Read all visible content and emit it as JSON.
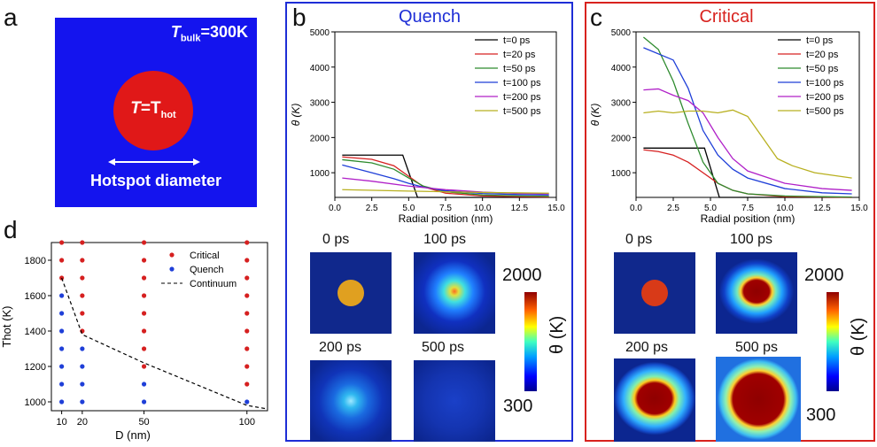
{
  "panel_a": {
    "letter": "a",
    "bulk_T": "T",
    "bulk_sub": "bulk",
    "bulk_val": "=300K",
    "hot_T": "T",
    "hot_eq": "=T",
    "hot_sub": "hot",
    "diameter_label": "Hotspot diameter",
    "colors": {
      "background": "#1414ee",
      "spot": "#e01818"
    }
  },
  "panel_b": {
    "letter": "b",
    "title": "Quench",
    "title_color": "#1e2ed6"
  },
  "panel_c": {
    "letter": "c",
    "title": "Critical",
    "title_color": "#d8221e"
  },
  "panel_d": {
    "letter": "d"
  },
  "snapshot_labels": {
    "t0": "0 ps",
    "t100": "100 ps",
    "t200": "200 ps",
    "t500": "500 ps"
  },
  "colorbar": {
    "max": "2000",
    "min": "300",
    "label": "θ (K)"
  },
  "chart_data": [
    {
      "id": "b",
      "type": "line",
      "xlabel": "Radial position (nm)",
      "ylabel": "θ (K)",
      "xlim": [
        0,
        15
      ],
      "ylim": [
        300,
        5000
      ],
      "xticks": [
        0.0,
        2.5,
        5.0,
        7.5,
        10.0,
        12.5,
        15.0
      ],
      "yticks": [
        1000,
        2000,
        3000,
        4000,
        5000
      ],
      "legend": "top-right",
      "series": [
        {
          "name": "t=0 ps",
          "color": "#000000",
          "x": [
            0.5,
            4.6,
            5.6,
            14.5
          ],
          "y": [
            1500,
            1500,
            300,
            300
          ]
        },
        {
          "name": "t=20 ps",
          "color": "#d62020",
          "x": [
            0.5,
            2.5,
            4.0,
            5.0,
            6.0,
            7.5,
            10,
            12.5,
            14.5
          ],
          "y": [
            1450,
            1380,
            1200,
            900,
            600,
            420,
            340,
            320,
            310
          ]
        },
        {
          "name": "t=50 ps",
          "color": "#2e8b2e",
          "x": [
            0.5,
            2.5,
            4.0,
            5.0,
            6.0,
            7.5,
            10,
            12.5,
            14.5
          ],
          "y": [
            1370,
            1280,
            1100,
            850,
            620,
            460,
            370,
            340,
            330
          ]
        },
        {
          "name": "t=100 ps",
          "color": "#1f3fd8",
          "x": [
            0.5,
            2.5,
            4.0,
            5.0,
            6.0,
            7.5,
            10,
            12.5,
            14.5
          ],
          "y": [
            1220,
            1000,
            830,
            700,
            590,
            490,
            410,
            380,
            370
          ]
        },
        {
          "name": "t=200 ps",
          "color": "#b020c8",
          "x": [
            0.5,
            2.5,
            5.0,
            7.5,
            10,
            12.5,
            14.5
          ],
          "y": [
            850,
            760,
            620,
            520,
            450,
            410,
            400
          ]
        },
        {
          "name": "t=500 ps",
          "color": "#b8b020",
          "x": [
            0.5,
            5.0,
            10,
            14.5
          ],
          "y": [
            520,
            480,
            440,
            420
          ]
        }
      ]
    },
    {
      "id": "c",
      "type": "line",
      "xlabel": "Radial position (nm)",
      "ylabel": "θ (K)",
      "xlim": [
        0,
        15
      ],
      "ylim": [
        300,
        5000
      ],
      "xticks": [
        0.0,
        2.5,
        5.0,
        7.5,
        10.0,
        12.5,
        15.0
      ],
      "yticks": [
        1000,
        2000,
        3000,
        4000,
        5000
      ],
      "legend": "top-right",
      "series": [
        {
          "name": "t=0 ps",
          "color": "#000000",
          "x": [
            0.5,
            4.6,
            5.6,
            14.5
          ],
          "y": [
            1700,
            1700,
            300,
            300
          ]
        },
        {
          "name": "t=20 ps",
          "color": "#d62020",
          "x": [
            0.5,
            1.5,
            2.5,
            3.5,
            4.5,
            5.5,
            6.5,
            7.5,
            10,
            12.5,
            14.5
          ],
          "y": [
            1650,
            1600,
            1500,
            1300,
            1000,
            700,
            500,
            400,
            320,
            310,
            300
          ]
        },
        {
          "name": "t=50 ps",
          "color": "#2e8b2e",
          "x": [
            0.5,
            1.5,
            2.5,
            3.5,
            4.5,
            5.5,
            6.5,
            7.5,
            10,
            12.5,
            14.5
          ],
          "y": [
            4850,
            4500,
            3600,
            2400,
            1300,
            700,
            500,
            400,
            340,
            320,
            310
          ]
        },
        {
          "name": "t=100 ps",
          "color": "#1f3fd8",
          "x": [
            0.5,
            2.5,
            3.5,
            4.5,
            5.5,
            6.5,
            7.5,
            10,
            12.5,
            14.5
          ],
          "y": [
            4550,
            4200,
            3400,
            2200,
            1500,
            1100,
            850,
            550,
            430,
            400
          ]
        },
        {
          "name": "t=200 ps",
          "color": "#b020c8",
          "x": [
            0.5,
            1.5,
            2.5,
            3.5,
            4.5,
            5.5,
            6.5,
            7.5,
            10,
            12.5,
            14.5
          ],
          "y": [
            3350,
            3380,
            3200,
            3050,
            2700,
            2000,
            1400,
            1050,
            700,
            550,
            500
          ]
        },
        {
          "name": "t=500 ps",
          "color": "#b8b020",
          "x": [
            0.5,
            1.5,
            2.5,
            3.5,
            4.5,
            5.5,
            6.5,
            7.5,
            8.5,
            9.5,
            10.5,
            12,
            14.5
          ],
          "y": [
            2700,
            2750,
            2700,
            2750,
            2750,
            2700,
            2780,
            2600,
            2000,
            1400,
            1200,
            1000,
            850
          ]
        }
      ]
    },
    {
      "id": "d",
      "type": "scatter",
      "xlabel": "D (nm)",
      "ylabel": "Thot (K)",
      "xlim": [
        5,
        110
      ],
      "ylim": [
        950,
        1900
      ],
      "xticks": [
        10,
        20,
        50,
        100
      ],
      "yticks": [
        1000,
        1200,
        1400,
        1600,
        1800
      ],
      "legend": "top-right",
      "series": [
        {
          "name": "Critical",
          "color": "#d62020",
          "points": [
            [
              10,
              1900
            ],
            [
              10,
              1800
            ],
            [
              10,
              1700
            ],
            [
              20,
              1900
            ],
            [
              20,
              1800
            ],
            [
              20,
              1700
            ],
            [
              20,
              1600
            ],
            [
              20,
              1500
            ],
            [
              20,
              1400
            ],
            [
              50,
              1900
            ],
            [
              50,
              1800
            ],
            [
              50,
              1700
            ],
            [
              50,
              1600
            ],
            [
              50,
              1500
            ],
            [
              50,
              1400
            ],
            [
              50,
              1300
            ],
            [
              50,
              1200
            ],
            [
              100,
              1900
            ],
            [
              100,
              1800
            ],
            [
              100,
              1700
            ],
            [
              100,
              1600
            ],
            [
              100,
              1500
            ],
            [
              100,
              1400
            ],
            [
              100,
              1300
            ],
            [
              100,
              1200
            ],
            [
              100,
              1100
            ]
          ]
        },
        {
          "name": "Quench",
          "color": "#1f3fd8",
          "points": [
            [
              10,
              1600
            ],
            [
              10,
              1500
            ],
            [
              10,
              1400
            ],
            [
              10,
              1300
            ],
            [
              10,
              1200
            ],
            [
              10,
              1100
            ],
            [
              10,
              1000
            ],
            [
              20,
              1300
            ],
            [
              20,
              1200
            ],
            [
              20,
              1100
            ],
            [
              20,
              1000
            ],
            [
              50,
              1100
            ],
            [
              50,
              1000
            ],
            [
              100,
              1000
            ]
          ]
        },
        {
          "name": "Continuum",
          "color": "#000000",
          "dashed": true,
          "x": [
            10,
            20,
            50,
            100,
            110
          ],
          "y": [
            1700,
            1380,
            1220,
            980,
            960
          ]
        }
      ]
    }
  ]
}
